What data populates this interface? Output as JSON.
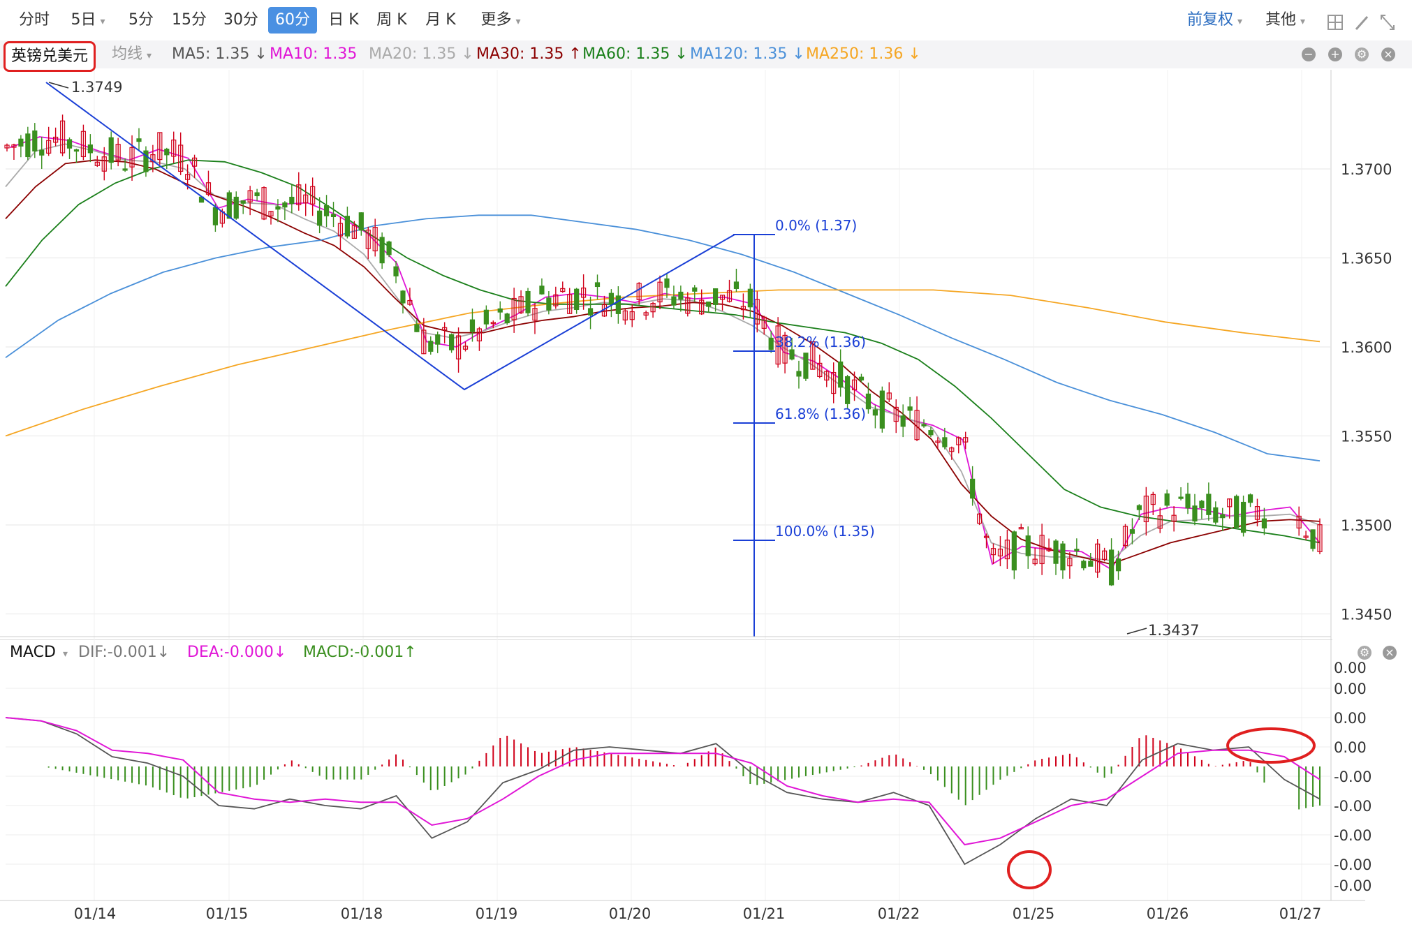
{
  "toolbar": {
    "periods": [
      "分时",
      "5日",
      "5分",
      "15分",
      "30分",
      "60分",
      "日 K",
      "周 K",
      "月 K",
      "更多"
    ],
    "active_period": "60分",
    "adjust": "前复权",
    "other": "其他"
  },
  "symbol": "英镑兑美元",
  "ma_type": "均线",
  "ma_labels": [
    {
      "text": "MA5: 1.35 ↓",
      "color": "#555555"
    },
    {
      "text": "MA10: 1.35",
      "color": "#e016d6"
    },
    {
      "text": "MA20: 1.35 ↓",
      "color": "#aaaaaa"
    },
    {
      "text": "MA30: 1.35 ↑",
      "color": "#8b0000"
    },
    {
      "text": "MA60: 1.35 ↓",
      "color": "#1a7f1a"
    },
    {
      "text": "MA120: 1.35 ↓",
      "color": "#4a90d9"
    },
    {
      "text": "MA250: 1.36 ↓",
      "color": "#f5a623"
    }
  ],
  "macd_labels": {
    "title": "MACD",
    "dif": "DIF:-0.001↓",
    "dea": "DEA:-0.000↓",
    "macd": "MACD:-0.001↑"
  },
  "colors": {
    "up": "#d0021b",
    "down": "#3a8f1f",
    "dif": "#555555",
    "dea": "#e016d6",
    "fib": "#1a3fd6"
  },
  "chart_data": [
    {
      "type": "candlestick",
      "title": "",
      "xlabel": "",
      "ylabel": "",
      "x_ticks": [
        "01/14",
        "01/15",
        "01/18",
        "01/19",
        "01/20",
        "01/21",
        "01/22",
        "01/25",
        "01/26",
        "01/27"
      ],
      "y_ticks": [
        "1.3700",
        "1.3650",
        "1.3600",
        "1.3550",
        "1.3500",
        "1.3450"
      ],
      "ylim": [
        1.3435,
        1.375
      ],
      "annotations": {
        "high": "1.3749",
        "low": "1.3437",
        "fibonacci": [
          "0.0% (1.37)",
          "38.2% (1.36)",
          "61.8% (1.36)",
          "100.0% (1.35)"
        ]
      },
      "series_ma": [
        {
          "name": "MA10",
          "values": [
            1.3712,
            1.3718,
            1.3716,
            1.371,
            1.3705,
            1.3711,
            1.3706,
            1.3678,
            1.3683,
            1.368,
            1.3681,
            1.3674,
            1.3664,
            1.3647,
            1.3603,
            1.36,
            1.361,
            1.3618,
            1.3628,
            1.363,
            1.3628,
            1.3625,
            1.363,
            1.3627,
            1.3628,
            1.3624,
            1.3597,
            1.3592,
            1.3581,
            1.3568,
            1.356,
            1.3556,
            1.3548,
            1.3478,
            1.3488,
            1.3486,
            1.3485,
            1.3475,
            1.3506,
            1.351,
            1.3509,
            1.3505,
            1.3508,
            1.351,
            1.349
          ]
        },
        {
          "name": "MA20",
          "values": [
            1.369,
            1.371,
            1.3714,
            1.371,
            1.3705,
            1.3704,
            1.37,
            1.3685,
            1.3681,
            1.368,
            1.3672,
            1.3665,
            1.3652,
            1.363,
            1.3608,
            1.3605,
            1.3609,
            1.3615,
            1.362,
            1.3622,
            1.3625,
            1.3624,
            1.3627,
            1.3626,
            1.362,
            1.3612,
            1.36,
            1.359,
            1.3578,
            1.3566,
            1.3561,
            1.3555,
            1.353,
            1.349,
            1.3484,
            1.3482,
            1.3482,
            1.348,
            1.3494,
            1.3502,
            1.3503,
            1.3505,
            1.3505,
            1.3506,
            1.35
          ]
        },
        {
          "name": "MA30",
          "values": [
            1.3672,
            1.369,
            1.3703,
            1.3705,
            1.3704,
            1.37,
            1.3692,
            1.3685,
            1.3679,
            1.3672,
            1.3664,
            1.3657,
            1.3645,
            1.3628,
            1.3612,
            1.3608,
            1.3608,
            1.3612,
            1.3615,
            1.3617,
            1.362,
            1.3622,
            1.3623,
            1.3625,
            1.3624,
            1.362,
            1.3612,
            1.3602,
            1.359,
            1.3575,
            1.3563,
            1.3548,
            1.3523,
            1.3505,
            1.3492,
            1.3486,
            1.3482,
            1.3478,
            1.3484,
            1.349,
            1.3494,
            1.3498,
            1.3502,
            1.3503,
            1.3502
          ]
        },
        {
          "name": "MA60",
          "values": [
            1.3634,
            1.366,
            1.368,
            1.3692,
            1.37,
            1.3705,
            1.3704,
            1.3698,
            1.369,
            1.3677,
            1.3663,
            1.365,
            1.364,
            1.3632,
            1.3626,
            1.3624,
            1.3624,
            1.3624,
            1.3622,
            1.362,
            1.3618,
            1.3614,
            1.3611,
            1.3608,
            1.3602,
            1.3593,
            1.3578,
            1.356,
            1.354,
            1.352,
            1.351,
            1.3505,
            1.3502,
            1.35,
            1.3497,
            1.3494,
            1.349
          ]
        },
        {
          "name": "MA120",
          "values": [
            1.3594,
            1.3615,
            1.363,
            1.3642,
            1.365,
            1.3656,
            1.366,
            1.3668,
            1.3672,
            1.3674,
            1.3674,
            1.367,
            1.3666,
            1.366,
            1.3652,
            1.3642,
            1.363,
            1.3618,
            1.3605,
            1.3593,
            1.358,
            1.357,
            1.3562,
            1.3552,
            1.354,
            1.3536
          ]
        },
        {
          "name": "MA250",
          "values": [
            1.355,
            1.3565,
            1.3578,
            1.359,
            1.36,
            1.361,
            1.3619,
            1.3624,
            1.3628,
            1.363,
            1.3632,
            1.3632,
            1.3632,
            1.3629,
            1.3622,
            1.3614,
            1.3608,
            1.3603
          ]
        }
      ]
    },
    {
      "type": "macd",
      "y_ticks": [
        "0.00",
        "0.00",
        "0.00",
        "0.00",
        "-0.00",
        "-0.00",
        "-0.00",
        "-0.00",
        "-0.00"
      ],
      "dif": [
        0.0015,
        0.0014,
        0.001,
        0.0003,
        0.0001,
        -0.0003,
        -0.0012,
        -0.0013,
        -0.001,
        -0.0012,
        -0.0013,
        -0.0009,
        -0.0022,
        -0.0017,
        -0.0005,
        -0.0001,
        0.0005,
        0.0006,
        0.0005,
        0.0004,
        0.0007,
        -0.0002,
        -0.0008,
        -0.001,
        -0.0011,
        -0.0008,
        -0.0012,
        -0.003,
        -0.0024,
        -0.0016,
        -0.001,
        -0.0012,
        0.0002,
        0.0007,
        0.0005,
        0.0006,
        -0.0004,
        -0.001
      ],
      "dea": [
        0.0015,
        0.0014,
        0.0011,
        0.0005,
        0.0004,
        0.0002,
        -0.0008,
        -0.001,
        -0.0011,
        -0.001,
        -0.0011,
        -0.0011,
        -0.0018,
        -0.0016,
        -0.001,
        -0.0003,
        0.0002,
        0.0004,
        0.0004,
        0.0004,
        0.0004,
        0.0001,
        -0.0006,
        -0.0009,
        -0.0011,
        -0.001,
        -0.0011,
        -0.0024,
        -0.0022,
        -0.0017,
        -0.0012,
        -0.001,
        -0.0003,
        0.0004,
        0.0005,
        0.0005,
        0.0003,
        -0.0004
      ]
    }
  ]
}
